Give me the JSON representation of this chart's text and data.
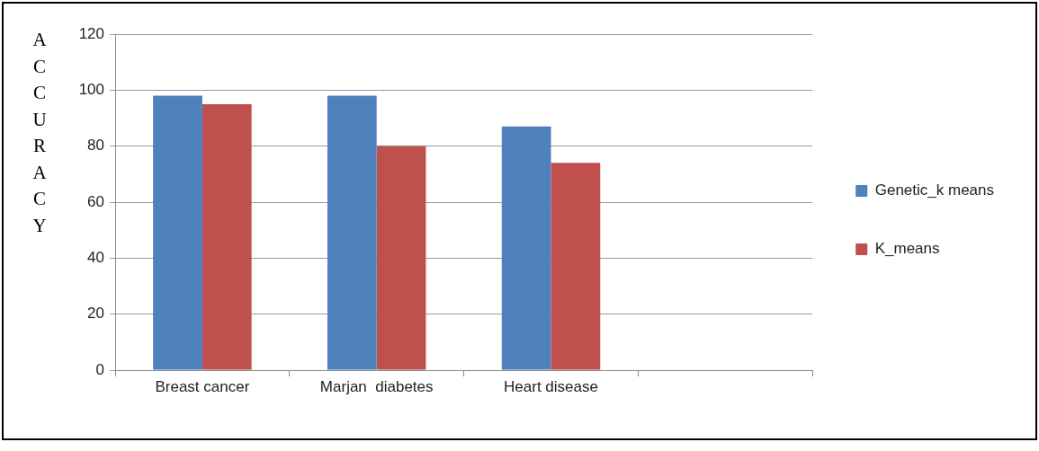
{
  "chart_data": {
    "type": "bar",
    "ylabel": "ACCURACY",
    "categories": [
      "Breast cancer",
      "Marjan  diabetes",
      "Heart disease",
      null
    ],
    "series": [
      {
        "name": "Genetic_k means",
        "color": "#4f81bd",
        "values": [
          98,
          98,
          87,
          null
        ]
      },
      {
        "name": "K_means",
        "color": "#c0504d",
        "values": [
          95,
          80,
          74,
          null
        ]
      }
    ],
    "ylim": [
      0,
      120
    ],
    "yticks": [
      0,
      20,
      40,
      60,
      80,
      100,
      120
    ],
    "grid": "y",
    "legend": "right"
  }
}
